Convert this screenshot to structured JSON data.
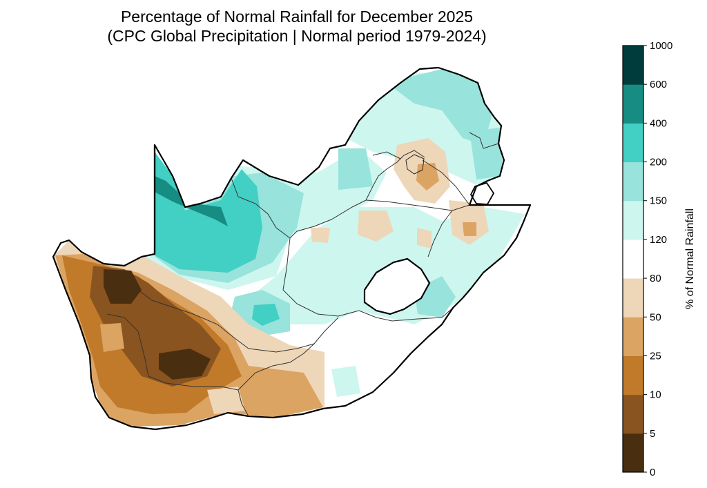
{
  "title": {
    "line1": "Percentage of Normal Rainfall for December 2025",
    "line2": "(CPC Global Precipitation | Normal period 1979-2024)"
  },
  "colorbar": {
    "label": "% of Normal Rainfall",
    "bins": [
      {
        "from": "0",
        "to": "5",
        "color": "#4a2e10"
      },
      {
        "from": "5",
        "to": "10",
        "color": "#8a5420"
      },
      {
        "from": "10",
        "to": "25",
        "color": "#c07a2a"
      },
      {
        "from": "25",
        "to": "50",
        "color": "#dca462"
      },
      {
        "from": "50",
        "to": "80",
        "color": "#eed6b8"
      },
      {
        "from": "80",
        "to": "120",
        "color": "#ffffff"
      },
      {
        "from": "120",
        "to": "150",
        "color": "#cdf6ee"
      },
      {
        "from": "150",
        "to": "200",
        "color": "#98e3dc"
      },
      {
        "from": "200",
        "to": "400",
        "color": "#42cfc4"
      },
      {
        "from": "400",
        "to": "600",
        "color": "#168c82"
      },
      {
        "from": "600",
        "to": "1000",
        "color": "#013c3c"
      }
    ],
    "ticks": [
      "0",
      "5",
      "10",
      "25",
      "50",
      "80",
      "120",
      "150",
      "200",
      "400",
      "600",
      "1000"
    ]
  }
}
